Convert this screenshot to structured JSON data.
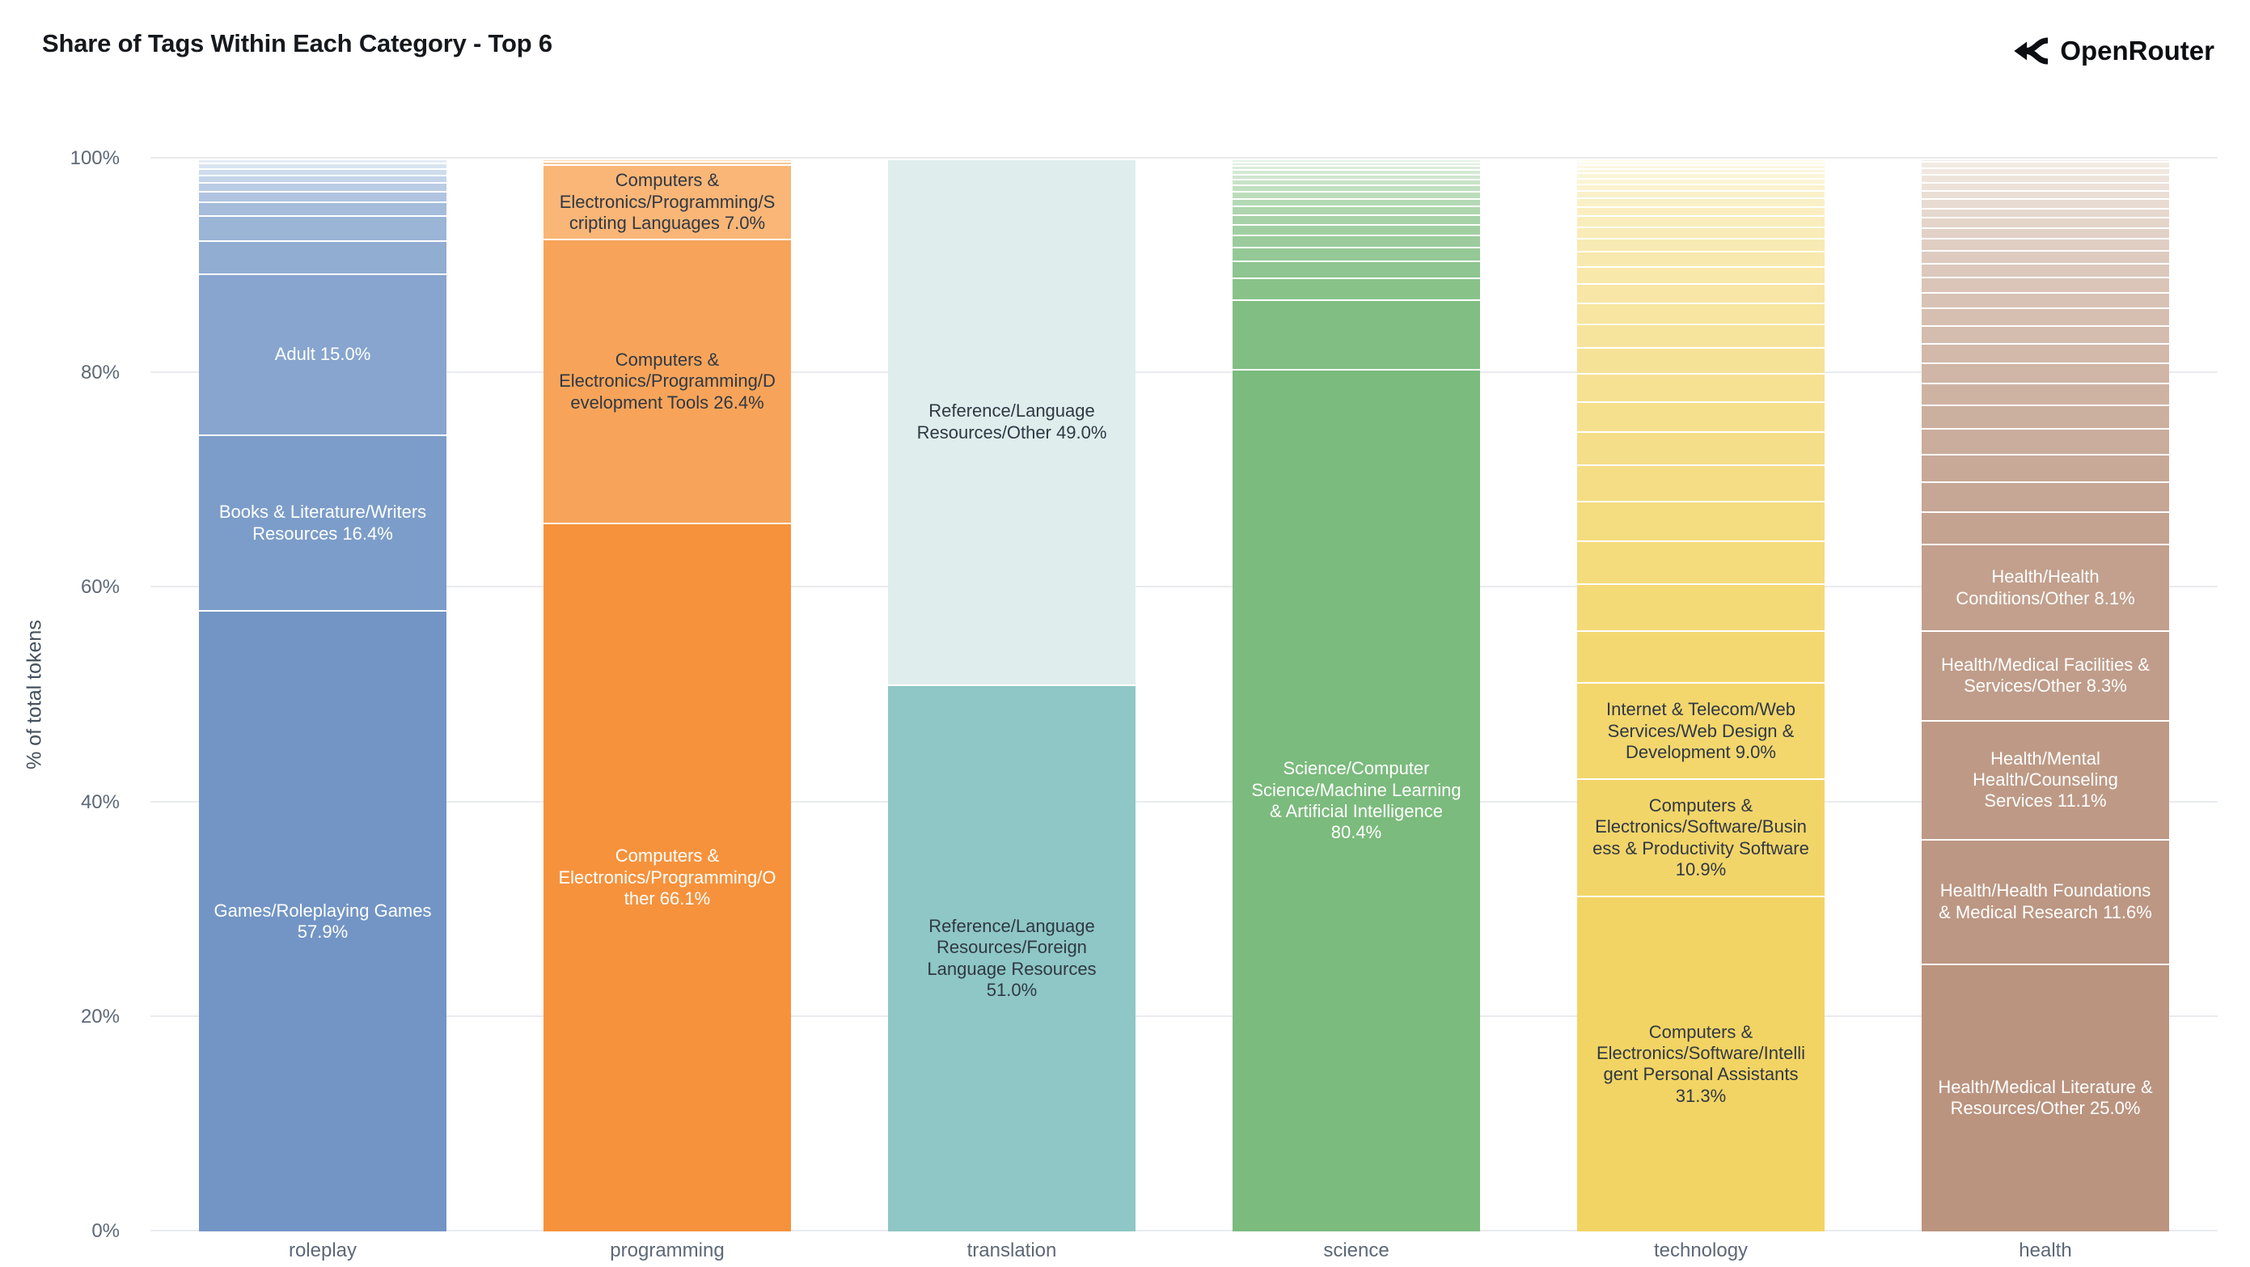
{
  "header": {
    "title": "Share of Tags Within Each Category - Top 6",
    "brand": {
      "name": "OpenRouter"
    }
  },
  "chart_data": {
    "type": "bar",
    "stacked": true,
    "orientation": "vertical",
    "title": "Share of Tags Within Each Category - Top 6",
    "ylabel": "% of total tokens",
    "ylim": [
      0,
      100
    ],
    "ytick_values": [
      0,
      20,
      40,
      60,
      80,
      100
    ],
    "ytick_labels": [
      "0%",
      "20%",
      "40%",
      "60%",
      "80%",
      "100%"
    ],
    "grid": true,
    "legend": "none",
    "categories": [
      "roleplay",
      "programming",
      "translation",
      "science",
      "technology",
      "health"
    ],
    "bars": [
      {
        "category": "roleplay",
        "color_base": "#7295c5",
        "color_light": "#e3ecf6",
        "segments": [
          {
            "tag": "Games/Roleplaying Games",
            "pct": 57.9,
            "text_color": "#ffffff"
          },
          {
            "tag": "Books & Literature/Writers Resources",
            "pct": 16.4,
            "text_color": "#ffffff"
          },
          {
            "tag": "Adult",
            "pct": 15.0,
            "text_color": "#ffffff"
          },
          {
            "tag": "",
            "pct": 3.1
          },
          {
            "tag": "",
            "pct": 2.3
          },
          {
            "tag": "",
            "pct": 1.3
          },
          {
            "tag": "",
            "pct": 1.0
          },
          {
            "tag": "",
            "pct": 0.8
          },
          {
            "tag": "",
            "pct": 0.7
          },
          {
            "tag": "",
            "pct": 0.6
          },
          {
            "tag": "",
            "pct": 0.5
          },
          {
            "tag": "",
            "pct": 0.4
          }
        ]
      },
      {
        "category": "programming",
        "color_base": "#f6923c",
        "color_light": "#fbd9b2",
        "segments": [
          {
            "tag": "Computers & Electronics/Programming/Other",
            "pct": 66.1,
            "text_color": "#ffffff"
          },
          {
            "tag": "Computers & Electronics/Programming/Development Tools",
            "pct": 26.4,
            "text_color": "#303844"
          },
          {
            "tag": "Computers & Electronics/Programming/Scripting Languages",
            "pct": 7.0,
            "text_color": "#303844"
          },
          {
            "tag": "",
            "pct": 0.3
          },
          {
            "tag": "",
            "pct": 0.2
          }
        ]
      },
      {
        "category": "translation",
        "color_base": "#8ec7c5",
        "color_light": "#dfeeed",
        "segments": [
          {
            "tag": "Reference/Language Resources/Foreign Language Resources",
            "pct": 51.0,
            "text_color": "#303844"
          },
          {
            "tag": "Reference/Language Resources/Other",
            "pct": 49.0,
            "text_color": "#303844"
          }
        ]
      },
      {
        "category": "science",
        "color_base": "#7bbb7d",
        "color_light": "#e7f3e6",
        "segments": [
          {
            "tag": "Science/Computer Science/Machine Learning & Artificial Intelligence",
            "pct": 80.4,
            "text_color": "#ffffff"
          },
          {
            "tag": "",
            "pct": 6.5
          },
          {
            "tag": "",
            "pct": 2.0
          },
          {
            "tag": "",
            "pct": 1.6
          },
          {
            "tag": "",
            "pct": 1.3
          },
          {
            "tag": "",
            "pct": 1.1
          },
          {
            "tag": "",
            "pct": 1.0
          },
          {
            "tag": "",
            "pct": 0.9
          },
          {
            "tag": "",
            "pct": 0.8
          },
          {
            "tag": "",
            "pct": 0.7
          },
          {
            "tag": "",
            "pct": 0.7
          },
          {
            "tag": "",
            "pct": 0.6
          },
          {
            "tag": "",
            "pct": 0.5
          },
          {
            "tag": "",
            "pct": 0.5
          },
          {
            "tag": "",
            "pct": 0.4
          },
          {
            "tag": "",
            "pct": 0.4
          },
          {
            "tag": "",
            "pct": 0.3
          },
          {
            "tag": "",
            "pct": 0.3
          }
        ]
      },
      {
        "category": "technology",
        "color_base": "#f2d464",
        "color_light": "#fdfaeb",
        "segments": [
          {
            "tag": "Computers & Electronics/Software/Intelligent Personal Assistants",
            "pct": 31.3,
            "text_color": "#303844"
          },
          {
            "tag": "Computers & Electronics/Software/Business & Productivity Software",
            "pct": 10.9,
            "text_color": "#303844"
          },
          {
            "tag": "Internet & Telecom/Web Services/Web Design & Development",
            "pct": 9.0,
            "text_color": "#303844"
          },
          {
            "tag": "",
            "pct": 4.8
          },
          {
            "tag": "",
            "pct": 4.4
          },
          {
            "tag": "",
            "pct": 4.0
          },
          {
            "tag": "",
            "pct": 3.7
          },
          {
            "tag": "",
            "pct": 3.4
          },
          {
            "tag": "",
            "pct": 3.1
          },
          {
            "tag": "",
            "pct": 2.8
          },
          {
            "tag": "",
            "pct": 2.6
          },
          {
            "tag": "",
            "pct": 2.4
          },
          {
            "tag": "",
            "pct": 2.2
          },
          {
            "tag": "",
            "pct": 2.0
          },
          {
            "tag": "",
            "pct": 1.8
          },
          {
            "tag": "",
            "pct": 1.6
          },
          {
            "tag": "",
            "pct": 1.4
          },
          {
            "tag": "",
            "pct": 1.2
          },
          {
            "tag": "",
            "pct": 1.1
          },
          {
            "tag": "",
            "pct": 1.0
          },
          {
            "tag": "",
            "pct": 0.9
          },
          {
            "tag": "",
            "pct": 0.8
          },
          {
            "tag": "",
            "pct": 0.7
          },
          {
            "tag": "",
            "pct": 0.6
          },
          {
            "tag": "",
            "pct": 0.5
          },
          {
            "tag": "",
            "pct": 0.5
          },
          {
            "tag": "",
            "pct": 0.4
          },
          {
            "tag": "",
            "pct": 0.4
          },
          {
            "tag": "",
            "pct": 0.3
          },
          {
            "tag": "",
            "pct": 0.2
          }
        ]
      },
      {
        "category": "health",
        "color_base": "#ba947f",
        "color_light": "#f4ede7",
        "segments": [
          {
            "tag": "Health/Medical Literature & Resources/Other",
            "pct": 25.0,
            "text_color": "#ffffff"
          },
          {
            "tag": "Health/Health Foundations & Medical Research",
            "pct": 11.6,
            "text_color": "#ffffff"
          },
          {
            "tag": "Health/Mental Health/Counseling Services",
            "pct": 11.1,
            "text_color": "#ffffff"
          },
          {
            "tag": "Health/Medical Facilities & Services/Other",
            "pct": 8.3,
            "text_color": "#ffffff"
          },
          {
            "tag": "Health/Health Conditions/Other",
            "pct": 8.1,
            "text_color": "#ffffff"
          },
          {
            "tag": "",
            "pct": 3.0
          },
          {
            "tag": "",
            "pct": 2.8
          },
          {
            "tag": "",
            "pct": 2.6
          },
          {
            "tag": "",
            "pct": 2.4
          },
          {
            "tag": "",
            "pct": 2.2
          },
          {
            "tag": "",
            "pct": 2.0
          },
          {
            "tag": "",
            "pct": 1.9
          },
          {
            "tag": "",
            "pct": 1.8
          },
          {
            "tag": "",
            "pct": 1.7
          },
          {
            "tag": "",
            "pct": 1.6
          },
          {
            "tag": "",
            "pct": 1.5
          },
          {
            "tag": "",
            "pct": 1.4
          },
          {
            "tag": "",
            "pct": 1.3
          },
          {
            "tag": "",
            "pct": 1.2
          },
          {
            "tag": "",
            "pct": 1.1
          },
          {
            "tag": "",
            "pct": 1.0
          },
          {
            "tag": "",
            "pct": 0.95
          },
          {
            "tag": "",
            "pct": 0.9
          },
          {
            "tag": "",
            "pct": 0.85
          },
          {
            "tag": "",
            "pct": 0.8
          },
          {
            "tag": "",
            "pct": 0.75
          },
          {
            "tag": "",
            "pct": 0.7
          },
          {
            "tag": "",
            "pct": 0.65
          },
          {
            "tag": "",
            "pct": 0.6
          },
          {
            "tag": "",
            "pct": 0.2
          }
        ]
      }
    ]
  }
}
